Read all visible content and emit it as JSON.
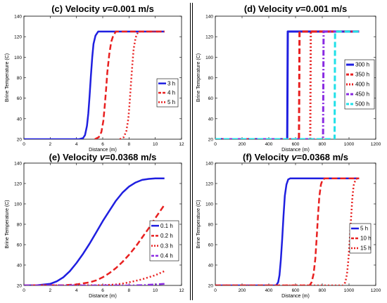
{
  "chart_data": [
    {
      "id": "c",
      "type": "line",
      "title_prefix": "(c) Velocity ",
      "title_var": "v",
      "title_suffix": "=0.001 m/s",
      "xlabel": "Distance (m)",
      "ylabel": "Brine Temperature (C)",
      "xlim": [
        0,
        12
      ],
      "ylim": [
        20,
        140
      ],
      "xticks": [
        0,
        2,
        4,
        6,
        8,
        10,
        12
      ],
      "yticks": [
        20,
        40,
        60,
        80,
        100,
        120,
        140
      ],
      "legend_position": "right",
      "series": [
        {
          "name": "3 h",
          "color": "#1f1fe0",
          "dash": "solid",
          "x": [
            0,
            4.2,
            4.5,
            4.65,
            4.8,
            4.9,
            5.0,
            5.1,
            5.2,
            5.3,
            5.45,
            5.65,
            10.7
          ],
          "y": [
            20,
            20,
            21,
            24,
            33,
            45,
            62,
            82,
            100,
            113,
            121,
            125,
            125
          ]
        },
        {
          "name": "4 h",
          "color": "#e82020",
          "dash": "dash",
          "x": [
            5.4,
            5.7,
            5.9,
            6.05,
            6.15,
            6.25,
            6.35,
            6.5,
            6.65,
            6.8,
            7.0,
            10.7
          ],
          "y": [
            20,
            22,
            27,
            38,
            52,
            68,
            85,
            103,
            115,
            121,
            125,
            125
          ]
        },
        {
          "name": "5 h",
          "color": "#e82020",
          "dash": "dot",
          "x": [
            7.3,
            7.6,
            7.8,
            7.95,
            8.05,
            8.15,
            8.25,
            8.35,
            8.5,
            8.7,
            10.7
          ],
          "y": [
            20,
            22,
            28,
            40,
            56,
            74,
            92,
            108,
            119,
            125,
            125
          ]
        }
      ]
    },
    {
      "id": "d",
      "type": "line",
      "title_prefix": "(d) Velocity ",
      "title_var": "v",
      "title_suffix": "=0.001 m/s",
      "xlabel": "Distance (m)",
      "ylabel": "Brine Temperature (C)",
      "xlim": [
        0,
        1200
      ],
      "ylim": [
        20,
        140
      ],
      "xticks": [
        0,
        200,
        400,
        600,
        800,
        1000,
        1200
      ],
      "yticks": [
        20,
        40,
        60,
        80,
        100,
        120,
        140
      ],
      "legend_position": "right",
      "series": [
        {
          "name": "300 h",
          "color": "#1f1fe0",
          "dash": "solid",
          "x": [
            0,
            538,
            542,
            546,
            1075
          ],
          "y": [
            20,
            20,
            125,
            125,
            125
          ]
        },
        {
          "name": "350 h",
          "color": "#e82020",
          "dash": "dash",
          "x": [
            0,
            626,
            630,
            634,
            1075
          ],
          "y": [
            20,
            20,
            125,
            125,
            125
          ]
        },
        {
          "name": "400 h",
          "color": "#e82020",
          "dash": "dot",
          "x": [
            0,
            710,
            714,
            718,
            1075
          ],
          "y": [
            20,
            20,
            125,
            125,
            125
          ]
        },
        {
          "name": "450 h",
          "color": "#8a2be2",
          "dash": "dashdot",
          "x": [
            0,
            806,
            810,
            814,
            1075
          ],
          "y": [
            20,
            20,
            125,
            125,
            125
          ]
        },
        {
          "name": "500 h",
          "color": "#20e0e8",
          "dash": "dash",
          "x": [
            0,
            892,
            896,
            900,
            1075
          ],
          "y": [
            20,
            20,
            125,
            125,
            125
          ]
        }
      ]
    },
    {
      "id": "e",
      "type": "line",
      "title_prefix": "(e) Velocity ",
      "title_var": "v",
      "title_suffix": "=0.0368 m/s",
      "xlabel": "Distance (m)",
      "ylabel": "Brine Temperature (C)",
      "xlim": [
        0,
        12
      ],
      "ylim": [
        20,
        140
      ],
      "xticks": [
        0,
        2,
        4,
        6,
        8,
        10,
        12
      ],
      "yticks": [
        20,
        40,
        60,
        80,
        100,
        120,
        140
      ],
      "legend_position": "right",
      "series": [
        {
          "name": "0.1 h",
          "color": "#1f1fe0",
          "dash": "solid",
          "x": [
            0,
            1,
            2,
            2.5,
            3,
            3.5,
            4,
            4.5,
            5,
            5.5,
            6,
            6.5,
            7,
            7.5,
            8,
            8.5,
            9,
            9.5,
            10,
            10.7
          ],
          "y": [
            20,
            20.2,
            21.5,
            24,
            28,
            34,
            42,
            51,
            61,
            72,
            83,
            93,
            103,
            111,
            117,
            121,
            123.5,
            124.5,
            125,
            125
          ]
        },
        {
          "name": "0.2 h",
          "color": "#e82020",
          "dash": "dash",
          "x": [
            0,
            3,
            4,
            5,
            5.5,
            6,
            6.5,
            7,
            7.5,
            8,
            8.5,
            9,
            9.5,
            10,
            10.7
          ],
          "y": [
            20,
            20.2,
            21,
            23,
            25,
            28,
            32,
            37,
            43,
            50,
            58,
            67,
            76,
            86,
            99
          ]
        },
        {
          "name": "0.3 h",
          "color": "#e82020",
          "dash": "dot",
          "x": [
            0,
            6,
            7,
            7.5,
            8,
            8.5,
            9,
            9.5,
            10,
            10.7
          ],
          "y": [
            20,
            20.2,
            21,
            21.8,
            23,
            24.5,
            26,
            28,
            30,
            34
          ]
        },
        {
          "name": "0.4 h",
          "color": "#8a2be2",
          "dash": "dashdot",
          "x": [
            0,
            8,
            9,
            10,
            10.7
          ],
          "y": [
            20,
            20,
            20.3,
            21,
            21.5
          ]
        }
      ]
    },
    {
      "id": "f",
      "type": "line",
      "title_prefix": "(f) Velocity ",
      "title_var": "v",
      "title_suffix": "=0.0368 m/s",
      "xlabel": "Distance (m)",
      "ylabel": "Brine Temperature (C)",
      "xlim": [
        0,
        1200
      ],
      "ylim": [
        20,
        140
      ],
      "xticks": [
        0,
        200,
        400,
        600,
        800,
        1000,
        1200
      ],
      "yticks": [
        20,
        40,
        60,
        80,
        100,
        120,
        140
      ],
      "legend_position": "right",
      "series": [
        {
          "name": "5 h",
          "color": "#1f1fe0",
          "dash": "solid",
          "x": [
            0,
            455,
            470,
            480,
            490,
            500,
            510,
            520,
            532,
            545,
            560,
            1075
          ],
          "y": [
            20,
            20,
            23,
            30,
            45,
            65,
            88,
            108,
            119,
            124,
            125,
            125
          ]
        },
        {
          "name": "10 h",
          "color": "#e82020",
          "dash": "dash",
          "x": [
            0,
            705,
            720,
            735,
            748,
            758,
            768,
            778,
            790,
            803,
            820,
            1075
          ],
          "y": [
            20,
            20,
            23,
            31,
            46,
            66,
            88,
            107,
            119,
            124,
            125,
            125
          ]
        },
        {
          "name": "15 h",
          "color": "#e82020",
          "dash": "dot",
          "x": [
            0,
            955,
            972,
            985,
            995,
            1005,
            1015,
            1025,
            1035,
            1048,
            1060,
            1075
          ],
          "y": [
            20,
            20,
            23,
            31,
            45,
            64,
            86,
            106,
            118,
            123.5,
            125,
            125
          ]
        }
      ]
    }
  ]
}
